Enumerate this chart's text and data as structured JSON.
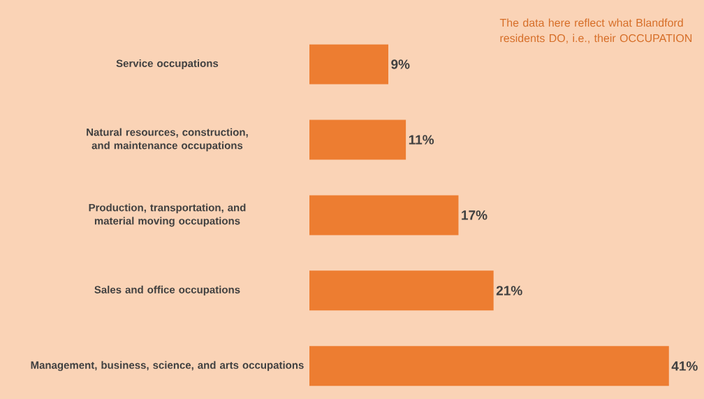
{
  "chart_data": {
    "type": "bar",
    "orientation": "horizontal",
    "categories": [
      "Service occupations",
      "Natural resources, construction, and maintenance occupations",
      "Production, transportation, and material moving occupations",
      "Sales and office occupations",
      "Management, business, science, and arts occupations"
    ],
    "values": [
      9,
      11,
      17,
      21,
      41
    ],
    "value_labels": [
      "9%",
      "11%",
      "17%",
      "21%",
      "41%"
    ],
    "color": "#ed7d31",
    "xlim": [
      0,
      45
    ],
    "tick_labels": "y",
    "annotations": [
      "The data here reflect what Blandford residents DO, i.e., their OCCUPATION"
    ]
  }
}
